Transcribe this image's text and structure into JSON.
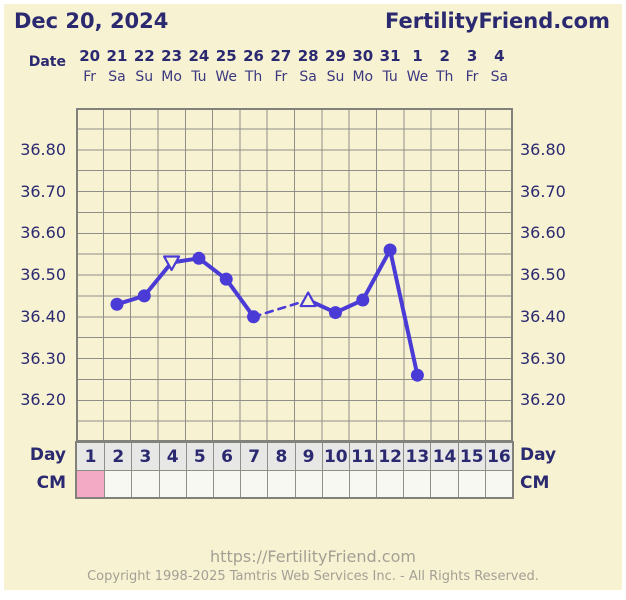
{
  "header": {
    "date_label": "Dec 20, 2024",
    "brand": "FertilityFriend.com"
  },
  "chart_data": {
    "type": "line",
    "x_label_row": "Date",
    "x_tick_dates": [
      "20",
      "21",
      "22",
      "23",
      "24",
      "25",
      "26",
      "27",
      "28",
      "29",
      "30",
      "31",
      "1",
      "2",
      "3",
      "4"
    ],
    "x_tick_weekdays": [
      "Fr",
      "Sa",
      "Su",
      "Mo",
      "Tu",
      "We",
      "Th",
      "Fr",
      "Sa",
      "Su",
      "Mo",
      "Tu",
      "We",
      "Th",
      "Fr",
      "Sa"
    ],
    "y_tick_labels": [
      "36.80",
      "36.70",
      "36.60",
      "36.50",
      "36.40",
      "36.30",
      "36.20"
    ],
    "ylim": [
      36.1,
      36.9
    ],
    "y_grid_step": 0.05,
    "num_days": 16,
    "grid": true,
    "gap_style": "dashed",
    "series": [
      {
        "name": "temperature",
        "color": "#4b3bd6",
        "points": [
          {
            "day": 2,
            "temp": 36.43,
            "marker": "circle"
          },
          {
            "day": 3,
            "temp": 36.45,
            "marker": "circle"
          },
          {
            "day": 4,
            "temp": 36.53,
            "marker": "triangle-down"
          },
          {
            "day": 5,
            "temp": 36.54,
            "marker": "circle"
          },
          {
            "day": 6,
            "temp": 36.49,
            "marker": "circle"
          },
          {
            "day": 7,
            "temp": 36.4,
            "marker": "circle"
          },
          {
            "day": 9,
            "temp": 36.44,
            "marker": "triangle-up"
          },
          {
            "day": 10,
            "temp": 36.41,
            "marker": "circle"
          },
          {
            "day": 11,
            "temp": 36.44,
            "marker": "circle"
          },
          {
            "day": 12,
            "temp": 36.56,
            "marker": "circle"
          },
          {
            "day": 13,
            "temp": 36.26,
            "marker": "circle"
          }
        ]
      }
    ]
  },
  "day_row": {
    "label": "Day",
    "days": [
      "1",
      "2",
      "3",
      "4",
      "5",
      "6",
      "7",
      "8",
      "9",
      "10",
      "11",
      "12",
      "13",
      "14",
      "15",
      "16"
    ]
  },
  "cm_row": {
    "label": "CM",
    "marked_day": 1
  },
  "footer": {
    "url": "https://FertilityFriend.com",
    "copyright": "Copyright 1998-2025 Tamtris Web Services Inc. - All Rights Reserved."
  },
  "colors": {
    "background": "#f7f2d2",
    "frame": "#ffffff",
    "text_navy": "#2b2970",
    "weekday_text": "#3b3880",
    "grid_line": "#8f8e89",
    "grid_border": "#82817c",
    "temp_line": "#4b3bd6",
    "day_cell_bg": "#e7e7e5",
    "cm_cell_bg": "#f8f8f3",
    "cm_marked_bg": "#f2aac5",
    "footer_text": "#a3a095"
  }
}
